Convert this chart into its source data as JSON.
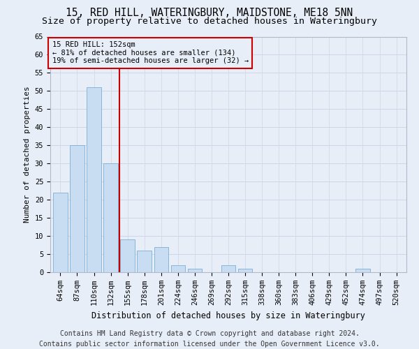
{
  "title_line1": "15, RED HILL, WATERINGBURY, MAIDSTONE, ME18 5NN",
  "title_line2": "Size of property relative to detached houses in Wateringbury",
  "xlabel": "Distribution of detached houses by size in Wateringbury",
  "ylabel": "Number of detached properties",
  "categories": [
    "64sqm",
    "87sqm",
    "110sqm",
    "132sqm",
    "155sqm",
    "178sqm",
    "201sqm",
    "224sqm",
    "246sqm",
    "269sqm",
    "292sqm",
    "315sqm",
    "338sqm",
    "360sqm",
    "383sqm",
    "406sqm",
    "429sqm",
    "452sqm",
    "474sqm",
    "497sqm",
    "520sqm"
  ],
  "values": [
    22,
    35,
    51,
    30,
    9,
    6,
    7,
    2,
    1,
    0,
    2,
    1,
    0,
    0,
    0,
    0,
    0,
    0,
    1,
    0,
    0
  ],
  "bar_color": "#c9ddf2",
  "bar_edge_color": "#7aadd4",
  "grid_color": "#cdd6e8",
  "background_color": "#e8eef8",
  "vline_x": 3.5,
  "vline_color": "#cc0000",
  "annotation_text": "15 RED HILL: 152sqm\n← 81% of detached houses are smaller (134)\n19% of semi-detached houses are larger (32) →",
  "annotation_box_color": "#cc0000",
  "ylim": [
    0,
    65
  ],
  "yticks": [
    0,
    5,
    10,
    15,
    20,
    25,
    30,
    35,
    40,
    45,
    50,
    55,
    60,
    65
  ],
  "footer_line1": "Contains HM Land Registry data © Crown copyright and database right 2024.",
  "footer_line2": "Contains public sector information licensed under the Open Government Licence v3.0.",
  "title_fontsize": 10.5,
  "subtitle_fontsize": 9.5,
  "xlabel_fontsize": 8.5,
  "ylabel_fontsize": 8,
  "tick_fontsize": 7.5,
  "footer_fontsize": 7,
  "ann_fontsize": 7.5
}
